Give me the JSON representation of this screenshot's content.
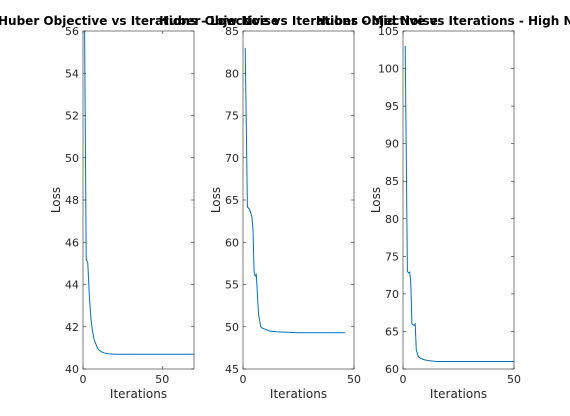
{
  "chart_data": [
    {
      "type": "line",
      "title": "Huber Objective vs Iterations - Low Noise",
      "xlabel": "Iterations",
      "ylabel": "Loss",
      "xlim": [
        0,
        70
      ],
      "ylim": [
        40,
        56
      ],
      "xticks": [
        0,
        50
      ],
      "yticks": [
        40,
        42,
        44,
        46,
        48,
        50,
        52,
        54,
        56
      ],
      "grid": false,
      "series": [
        {
          "x": [
            1,
            2,
            3,
            4,
            5,
            6,
            7,
            8,
            9,
            10,
            12,
            14,
            16,
            20,
            25,
            30,
            40,
            50,
            60,
            70
          ],
          "y": [
            56,
            45.2,
            45.0,
            43.5,
            42.4,
            41.8,
            41.4,
            41.2,
            41.0,
            40.9,
            40.8,
            40.75,
            40.72,
            40.7,
            40.7,
            40.7,
            40.7,
            40.7,
            40.7,
            40.7
          ]
        }
      ]
    },
    {
      "type": "line",
      "title": "Huber Objective vs Iterations - Mid Noise",
      "xlabel": "Iterations",
      "ylabel": "Loss",
      "xlim": [
        0,
        50
      ],
      "ylim": [
        45,
        85
      ],
      "xticks": [
        0,
        50
      ],
      "yticks": [
        45,
        50,
        55,
        60,
        65,
        70,
        75,
        80,
        85
      ],
      "grid": false,
      "series": [
        {
          "x": [
            1,
            2,
            2.6,
            3,
            4,
            4.5,
            5,
            5.5,
            6,
            7,
            8,
            9,
            10,
            12,
            15,
            20,
            25,
            30,
            40,
            46
          ],
          "y": [
            83,
            64.2,
            64.0,
            63.9,
            63.0,
            61.5,
            56.5,
            56.0,
            56.2,
            51.5,
            50.0,
            49.8,
            49.7,
            49.5,
            49.4,
            49.35,
            49.3,
            49.3,
            49.3,
            49.3
          ]
        }
      ]
    },
    {
      "type": "line",
      "title": "Huber Objective vs Iterations - High Noise",
      "xlabel": "Iterations",
      "ylabel": "Loss",
      "xlim": [
        0,
        50
      ],
      "ylim": [
        60,
        105
      ],
      "xticks": [
        0,
        50
      ],
      "yticks": [
        60,
        65,
        70,
        75,
        80,
        85,
        90,
        95,
        100,
        105
      ],
      "grid": false,
      "series": [
        {
          "x": [
            1,
            2,
            2.5,
            3,
            3.5,
            4,
            5,
            5.5,
            6,
            7,
            7.5,
            8,
            10,
            12,
            15,
            20,
            30,
            40,
            50
          ],
          "y": [
            103,
            73.0,
            72.8,
            72.9,
            71.5,
            66.0,
            65.8,
            66.0,
            62.5,
            61.6,
            61.5,
            61.4,
            61.2,
            61.1,
            61.0,
            61.0,
            61.0,
            61.0,
            61.0
          ]
        }
      ]
    }
  ],
  "colors": {
    "line": "#0072bd",
    "axis": "#262626"
  }
}
